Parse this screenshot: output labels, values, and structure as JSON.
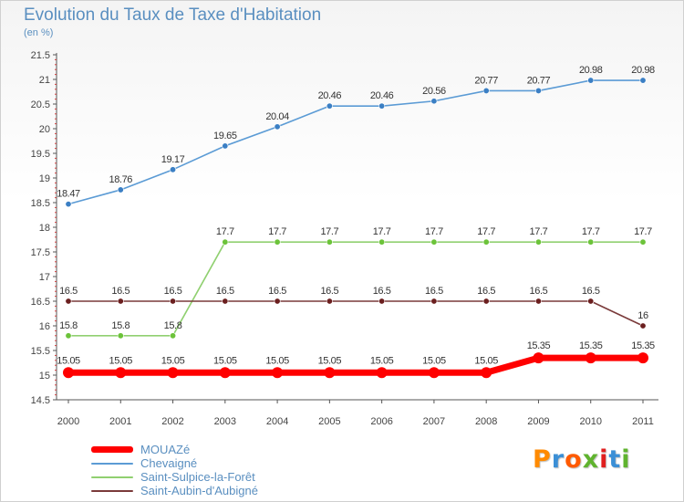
{
  "header": {
    "title": "Evolution du Taux de Taxe d'Habitation",
    "subtitle": "(en %)"
  },
  "logo": {
    "text": "Proxiti",
    "colors": [
      "#ff8a00",
      "#3b8fd6",
      "#ff5a00",
      "#5fb32e",
      "#e02020",
      "#3b8fd6",
      "#5fb32e"
    ]
  },
  "chart_data": {
    "type": "line",
    "title": "Evolution du Taux de Taxe d'Habitation",
    "ylabel": "(en %)",
    "xlabel": "",
    "x": [
      "2000",
      "2001",
      "2002",
      "2003",
      "2004",
      "2005",
      "2006",
      "2007",
      "2008",
      "2009",
      "2010",
      "2011"
    ],
    "ylim": [
      14.5,
      21.5
    ],
    "yticks": [
      "14.5",
      "15",
      "15.5",
      "16",
      "16.5",
      "17",
      "17.5",
      "18",
      "18.5",
      "19",
      "19.5",
      "20",
      "20.5",
      "21",
      "21.5"
    ],
    "grid": false,
    "legend": "bottom-left",
    "series": [
      {
        "name": "MOUAZé",
        "color": "#ff0000",
        "style": "thick",
        "values": [
          15.05,
          15.05,
          15.05,
          15.05,
          15.05,
          15.05,
          15.05,
          15.05,
          15.05,
          15.35,
          15.35,
          15.35
        ],
        "labels": [
          "15.05",
          "15.05",
          "15.05",
          "15.05",
          "15.05",
          "15.05",
          "15.05",
          "15.05",
          "15.05",
          "15.35",
          "15.35",
          "15.35"
        ]
      },
      {
        "name": "Chevaigné",
        "color": "#5b9bd5",
        "marker": "#3b7fc4",
        "values": [
          18.47,
          18.76,
          19.17,
          19.65,
          20.04,
          20.46,
          20.46,
          20.56,
          20.77,
          20.77,
          20.98,
          20.98
        ],
        "labels": [
          "18.47",
          "18.76",
          "19.17",
          "19.65",
          "20.04",
          "20.46",
          "20.46",
          "20.56",
          "20.77",
          "20.77",
          "20.98",
          "20.98"
        ]
      },
      {
        "name": "Saint-Sulpice-la-Forêt",
        "color": "#90d070",
        "marker": "#6cc33a",
        "values": [
          15.8,
          15.8,
          15.8,
          17.7,
          17.7,
          17.7,
          17.7,
          17.7,
          17.7,
          17.7,
          17.7,
          17.7
        ],
        "labels": [
          "15.8",
          "15.8",
          "15.8",
          "17.7",
          "17.7",
          "17.7",
          "17.7",
          "17.7",
          "17.7",
          "17.7",
          "17.7",
          "17.7"
        ]
      },
      {
        "name": "Saint-Aubin-d'Aubigné",
        "color": "#7a3a3a",
        "marker": "#6b1f1f",
        "values": [
          16.5,
          16.5,
          16.5,
          16.5,
          16.5,
          16.5,
          16.5,
          16.5,
          16.5,
          16.5,
          16.5,
          16.0
        ],
        "labels": [
          "16.5",
          "16.5",
          "16.5",
          "16.5",
          "16.5",
          "16.5",
          "16.5",
          "16.5",
          "16.5",
          "16.5",
          "16.5",
          "16"
        ]
      }
    ]
  }
}
